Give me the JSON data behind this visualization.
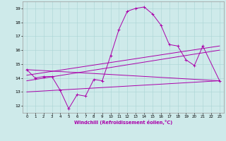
{
  "xlabel": "Windchill (Refroidissement éolien,°C)",
  "bg_color": "#ceeaea",
  "line_color": "#aa00aa",
  "x_ticks": [
    0,
    1,
    2,
    3,
    4,
    5,
    6,
    7,
    8,
    9,
    10,
    11,
    12,
    13,
    14,
    15,
    16,
    17,
    18,
    19,
    20,
    21,
    22,
    23
  ],
  "ylim": [
    11.5,
    19.5
  ],
  "xlim": [
    -0.5,
    23.5
  ],
  "yticks": [
    12,
    13,
    14,
    15,
    16,
    17,
    18,
    19
  ],
  "series1_x": [
    0,
    1,
    2,
    3,
    4,
    5,
    6,
    7,
    8,
    9,
    10,
    11,
    12,
    13,
    14,
    15,
    16,
    17,
    18,
    19,
    20,
    21,
    23
  ],
  "series1_y": [
    14.6,
    14.0,
    14.1,
    14.1,
    13.1,
    11.8,
    12.8,
    12.7,
    13.9,
    13.8,
    15.6,
    17.5,
    18.8,
    19.0,
    19.1,
    18.6,
    17.8,
    16.4,
    16.3,
    15.3,
    14.9,
    16.3,
    13.8
  ],
  "series2_x": [
    0,
    23
  ],
  "series2_y": [
    14.2,
    16.3
  ],
  "series3_x": [
    0,
    23
  ],
  "series3_y": [
    13.8,
    16.0
  ],
  "series4_x": [
    0,
    23
  ],
  "series4_y": [
    14.6,
    13.8
  ],
  "series5_x": [
    0,
    23
  ],
  "series5_y": [
    13.0,
    13.8
  ],
  "grid_color": "#aad4d4",
  "spine_color": "#999999"
}
